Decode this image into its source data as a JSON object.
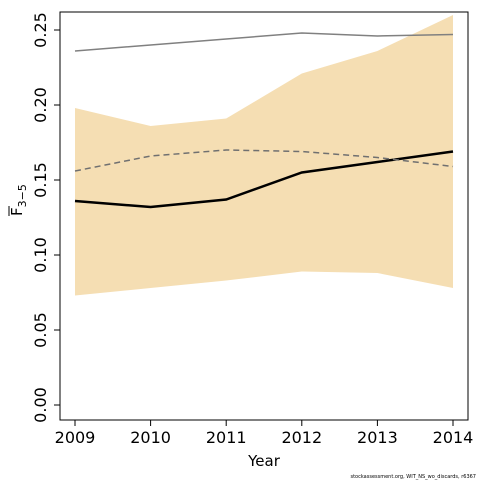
{
  "chart_data": {
    "type": "line",
    "title": "",
    "xlabel": "Year",
    "ylabel": "F",
    "ylabel_subscript": "3−5",
    "x": [
      2009,
      2010,
      2011,
      2012,
      2013,
      2014
    ],
    "xlim": [
      2009,
      2014
    ],
    "ylim": [
      0.0,
      0.25
    ],
    "y_ticks": [
      0.0,
      0.05,
      0.1,
      0.15,
      0.2,
      0.25
    ],
    "y_tick_labels": [
      "0.00",
      "0.05",
      "0.10",
      "0.15",
      "0.20",
      "0.25"
    ],
    "x_tick_labels": [
      "2009",
      "2010",
      "2011",
      "2012",
      "2013",
      "2014"
    ],
    "grid": false,
    "legend": "none",
    "band": {
      "lower": [
        0.073,
        0.078,
        0.083,
        0.089,
        0.088,
        0.078
      ],
      "upper": [
        0.198,
        0.186,
        0.191,
        0.221,
        0.236,
        0.26
      ],
      "color": "#f5deb3"
    },
    "series": [
      {
        "values": [
          0.136,
          0.132,
          0.137,
          0.155,
          0.162,
          0.169
        ],
        "color": "#000000",
        "style": "solid"
      },
      {
        "values": [
          0.156,
          0.166,
          0.17,
          0.169,
          0.165,
          0.159
        ],
        "color": "#707070",
        "style": "dashed"
      },
      {
        "values": [
          0.236,
          0.24,
          0.244,
          0.248,
          0.246,
          0.247
        ],
        "color": "#808080",
        "style": "solid"
      }
    ],
    "credit": "stockassessment.org, WIT_NS_wo_discards, r6367"
  }
}
